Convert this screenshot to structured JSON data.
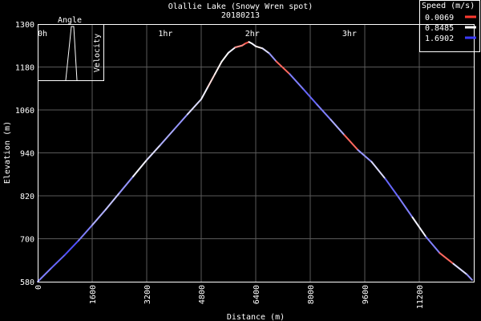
{
  "chart_data": {
    "type": "line",
    "title": "Olallie Lake (Snowy Wren spot)",
    "subtitle": "20180213",
    "xlabel": "Distance (m)",
    "ylabel": "Elevation (m)",
    "xlim": [
      0,
      12800
    ],
    "ylim": [
      580,
      1300
    ],
    "x_ticks": [
      "0",
      "1600",
      "3200",
      "4800",
      "6400",
      "8000",
      "9600",
      "11200"
    ],
    "y_ticks": [
      "580",
      "700",
      "820",
      "940",
      "1060",
      "1180",
      "1300"
    ],
    "time_ticks": [
      "0h",
      "1hr",
      "2hr",
      "3hr"
    ],
    "time_tick_distances": [
      0,
      3750,
      6300,
      9150
    ],
    "grid": true,
    "legend": {
      "title": "Speed (m/s)",
      "placement": "top-right",
      "entries": [
        {
          "label": "0.0069",
          "color": "#ff3b30"
        },
        {
          "label": "0.8485",
          "color": "#ffffff"
        },
        {
          "label": "1.6902",
          "color": "#3b3bff"
        }
      ]
    },
    "inset": {
      "angle_label": "Angle",
      "velocity_label": "Velocity"
    },
    "series": [
      {
        "x": [
          0,
          400,
          800,
          1200,
          1600,
          2000,
          2400,
          2800,
          3200,
          3600,
          4000,
          4400,
          4800,
          5000,
          5200,
          5400,
          5600,
          5800,
          6000,
          6100,
          6200,
          6300,
          6400,
          6600,
          6800,
          7000,
          7400,
          7800,
          8200,
          8600,
          9000,
          9400,
          9800,
          10200,
          10600,
          11000,
          11400,
          11800,
          12200,
          12600,
          12750
        ],
        "y": [
          580,
          618,
          655,
          695,
          738,
          782,
          828,
          874,
          920,
          962,
          1005,
          1048,
          1090,
          1125,
          1160,
          1195,
          1220,
          1235,
          1240,
          1246,
          1250,
          1245,
          1238,
          1232,
          1218,
          1196,
          1160,
          1118,
          1075,
          1033,
          990,
          948,
          915,
          868,
          815,
          760,
          705,
          660,
          630,
          600,
          585
        ],
        "speed": [
          1.4,
          1.5,
          1.6,
          1.4,
          1.2,
          1.1,
          1.3,
          0.9,
          1.0,
          1.2,
          1.3,
          1.0,
          0.9,
          0.7,
          0.8,
          0.85,
          0.9,
          0.4,
          0.3,
          0.1,
          0.85,
          0.9,
          0.8,
          1.0,
          1.3,
          0.2,
          1.4,
          1.5,
          1.4,
          1.2,
          0.2,
          1.3,
          1.0,
          1.5,
          1.4,
          0.9,
          1.4,
          0.2,
          1.0,
          1.3,
          1.5
        ]
      }
    ]
  }
}
